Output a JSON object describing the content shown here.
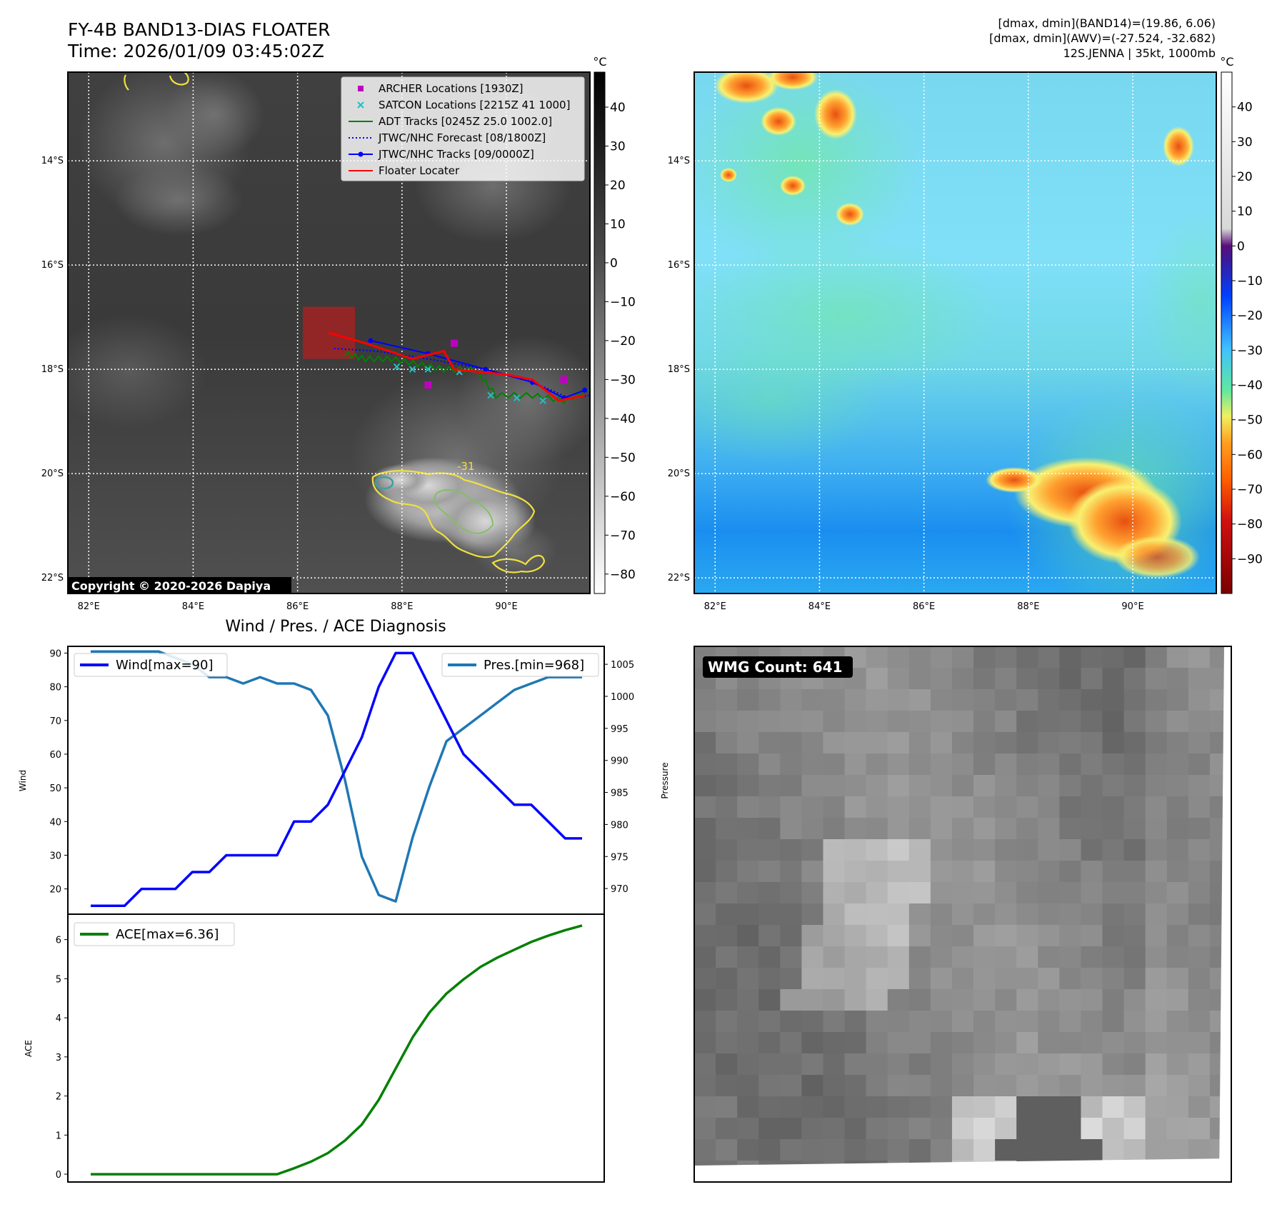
{
  "header": {
    "title": "FY-4B BAND13-DIAS FLOATER",
    "time": "Time: 2026/01/09 03:45:02Z",
    "info_lines": [
      "[dmax, dmin](BAND14)=(19.86, 6.06)",
      "[dmax, dmin](AWV)=(-27.524, -32.682)",
      "12S.JENNA | 35kt, 1000mb"
    ]
  },
  "map": {
    "lat_labels": [
      "14°S",
      "16°S",
      "18°S",
      "20°S",
      "22°S"
    ],
    "lat_values": [
      -14,
      -16,
      -18,
      -20,
      -22
    ],
    "lon_labels": [
      "82°E",
      "84°E",
      "86°E",
      "88°E",
      "90°E"
    ],
    "lon_values": [
      82,
      84,
      86,
      88,
      90
    ],
    "extent": {
      "lon_min": 81.6,
      "lon_max": 91.6,
      "lat_min": -22.3,
      "lat_max": -12.3
    },
    "copyright": "Copyright © 2020-2026 Dapiya",
    "contour_label": "-31"
  },
  "colorbar_left": {
    "unit": "°C",
    "ticks": [
      "40",
      "30",
      "20",
      "10",
      "0",
      "−10",
      "−20",
      "−30",
      "−40",
      "−50",
      "−60",
      "−70",
      "−80"
    ],
    "tick_values": [
      40,
      30,
      20,
      10,
      0,
      -10,
      -20,
      -30,
      -40,
      -50,
      -60,
      -70,
      -80
    ],
    "range": [
      -85,
      49
    ]
  },
  "colorbar_right": {
    "unit": "°C",
    "ticks": [
      "40",
      "30",
      "20",
      "10",
      "0",
      "−10",
      "−20",
      "−30",
      "−40",
      "−50",
      "−60",
      "−70",
      "−80",
      "−90"
    ],
    "tick_values": [
      40,
      30,
      20,
      10,
      0,
      -10,
      -20,
      -30,
      -40,
      -50,
      -60,
      -70,
      -80,
      -90
    ],
    "range": [
      -100,
      50
    ]
  },
  "legend": {
    "items": [
      {
        "label": "ARCHER Locations [1930Z]",
        "color": "#c000c0",
        "kind": "square"
      },
      {
        "label": "SATCON Locations [2215Z 41 1000]",
        "color": "#20c0c0",
        "kind": "x"
      },
      {
        "label": "ADT Tracks [0245Z 25.0 1002.0]",
        "color": "#008000",
        "kind": "line"
      },
      {
        "label": "JTWC/NHC Forecast [08/1800Z]",
        "color": "#0000ff",
        "kind": "dotted"
      },
      {
        "label": "JTWC/NHC Tracks [09/0000Z]",
        "color": "#0000ff",
        "kind": "line-dot"
      },
      {
        "label": "Floater Locater",
        "color": "#ff0000",
        "kind": "line"
      }
    ]
  },
  "tracks": {
    "archer": [
      [
        89.0,
        -17.5
      ],
      [
        91.1,
        -18.2
      ],
      [
        88.5,
        -18.3
      ]
    ],
    "satcon": [
      [
        87.9,
        -17.95
      ],
      [
        88.2,
        -18.0
      ],
      [
        88.5,
        -18.0
      ],
      [
        89.1,
        -18.05
      ],
      [
        89.7,
        -18.5
      ],
      [
        90.2,
        -18.55
      ],
      [
        90.7,
        -18.6
      ]
    ],
    "adt": [
      [
        86.9,
        -17.7
      ],
      [
        87.3,
        -17.8
      ],
      [
        87.8,
        -17.8
      ],
      [
        88.3,
        -17.9
      ],
      [
        88.8,
        -18.0
      ],
      [
        89.4,
        -18.0
      ],
      [
        89.8,
        -18.5
      ],
      [
        90.5,
        -18.5
      ],
      [
        91.1,
        -18.6
      ],
      [
        91.6,
        -18.4
      ]
    ],
    "jtwc_forecast": [
      [
        86.7,
        -17.6
      ],
      [
        87.5,
        -17.65
      ],
      [
        88.5,
        -17.8
      ],
      [
        89.6,
        -18.0
      ],
      [
        90.4,
        -18.2
      ],
      [
        91.2,
        -18.55
      ],
      [
        91.6,
        -18.5
      ]
    ],
    "jtwc_track": [
      [
        87.4,
        -17.45
      ],
      [
        88.5,
        -17.7
      ],
      [
        89.6,
        -18.0
      ],
      [
        90.5,
        -18.25
      ],
      [
        91.1,
        -18.55
      ],
      [
        91.5,
        -18.4
      ]
    ],
    "floater": [
      [
        86.6,
        -17.3
      ],
      [
        87.3,
        -17.5
      ],
      [
        88.2,
        -17.8
      ],
      [
        88.8,
        -17.65
      ],
      [
        89.0,
        -18.0
      ],
      [
        90.0,
        -18.1
      ],
      [
        90.5,
        -18.2
      ],
      [
        91.0,
        -18.6
      ],
      [
        91.5,
        -18.5
      ]
    ],
    "floater_box": {
      "lon": [
        86.1,
        87.1
      ],
      "lat": [
        -17.8,
        -16.8
      ]
    }
  },
  "chart_data": [
    {
      "type": "line",
      "title": "Wind / Pres. / ACE Diagnosis",
      "ylabel": "Wind",
      "ylim": [
        12.5,
        92
      ],
      "y_ticks": [
        20,
        30,
        40,
        50,
        60,
        70,
        80,
        90
      ],
      "series": [
        {
          "name": "Wind[max=90]",
          "color": "#0000ff",
          "values": [
            15,
            15,
            15,
            20,
            20,
            20,
            25,
            25,
            30,
            30,
            30,
            30,
            40,
            40,
            45,
            55,
            65,
            80,
            90,
            90,
            80,
            70,
            60,
            55,
            50,
            45,
            45,
            40,
            35,
            35
          ]
        }
      ]
    },
    {
      "type": "line",
      "ylabel": "Pressure",
      "ylim": [
        966,
        1007.8
      ],
      "y_ticks": [
        970,
        975,
        980,
        985,
        990,
        995,
        1000,
        1005
      ],
      "series": [
        {
          "name": "Pres.[min=968]",
          "color": "#1f77b4",
          "values": [
            1007,
            1007,
            1007,
            1007,
            1007,
            1006,
            1005,
            1003,
            1003,
            1002,
            1003,
            1002,
            1002,
            1001,
            997,
            987,
            975,
            969,
            968,
            978,
            986,
            993,
            995,
            997,
            999,
            1001,
            1002,
            1003,
            1003,
            1003
          ]
        }
      ]
    },
    {
      "type": "line",
      "ylabel": "ACE",
      "ylim": [
        -0.2,
        6.65
      ],
      "y_ticks": [
        0,
        1,
        2,
        3,
        4,
        5,
        6
      ],
      "series": [
        {
          "name": "ACE[max=6.36]",
          "color": "#008000",
          "values": [
            0,
            0,
            0,
            0,
            0,
            0,
            0,
            0,
            0,
            0,
            0,
            0,
            0.15,
            0.32,
            0.54,
            0.86,
            1.27,
            1.9,
            2.7,
            3.5,
            4.14,
            4.62,
            4.98,
            5.3,
            5.54,
            5.74,
            5.94,
            6.1,
            6.24,
            6.36
          ]
        }
      ]
    }
  ],
  "wmg": {
    "label": "WMG Count: 641"
  }
}
